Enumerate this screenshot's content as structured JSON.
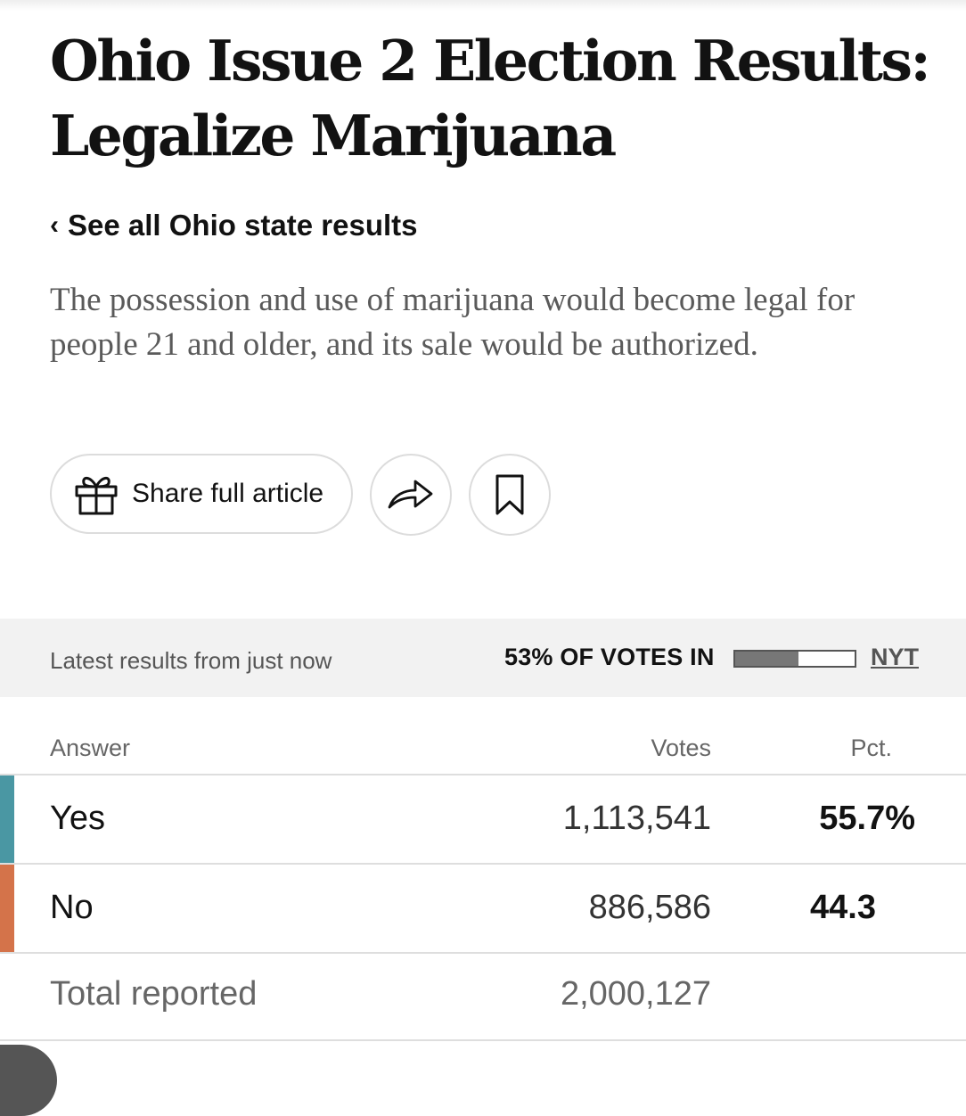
{
  "article": {
    "headline_line1": "Ohio Issue 2 Election Results:",
    "headline_line2": "Legalize Marijuana",
    "back_link_label": "See all Ohio state results",
    "summary": "The possession and use of marijuana would become legal for people 21 and older, and its sale would be authorized."
  },
  "actions": {
    "share_full_article_label": "Share full article",
    "share_icon": "share-arrow-icon",
    "save_icon": "bookmark-icon",
    "gift_icon": "gift-icon",
    "back_icon": "chevron-left-icon"
  },
  "results_header": {
    "latest_text": "Latest results from just now",
    "votes_in_label": "53% OF VOTES IN",
    "votes_in_fraction": 0.53,
    "source_label": "NYT"
  },
  "table": {
    "columns": {
      "answer": "Answer",
      "votes": "Votes",
      "pct": "Pct."
    },
    "rows": [
      {
        "answer": "Yes",
        "votes": "1,113,541",
        "pct": "55.7%",
        "color": "#4a97a3"
      },
      {
        "answer": "No",
        "votes": "886,586",
        "pct": "44.3",
        "color": "#d4734a"
      }
    ],
    "total": {
      "label": "Total reported",
      "votes": "2,000,127"
    }
  },
  "colors": {
    "yes": "#4a97a3",
    "no": "#d4734a",
    "results_bar_bg": "#f2f2f2"
  }
}
